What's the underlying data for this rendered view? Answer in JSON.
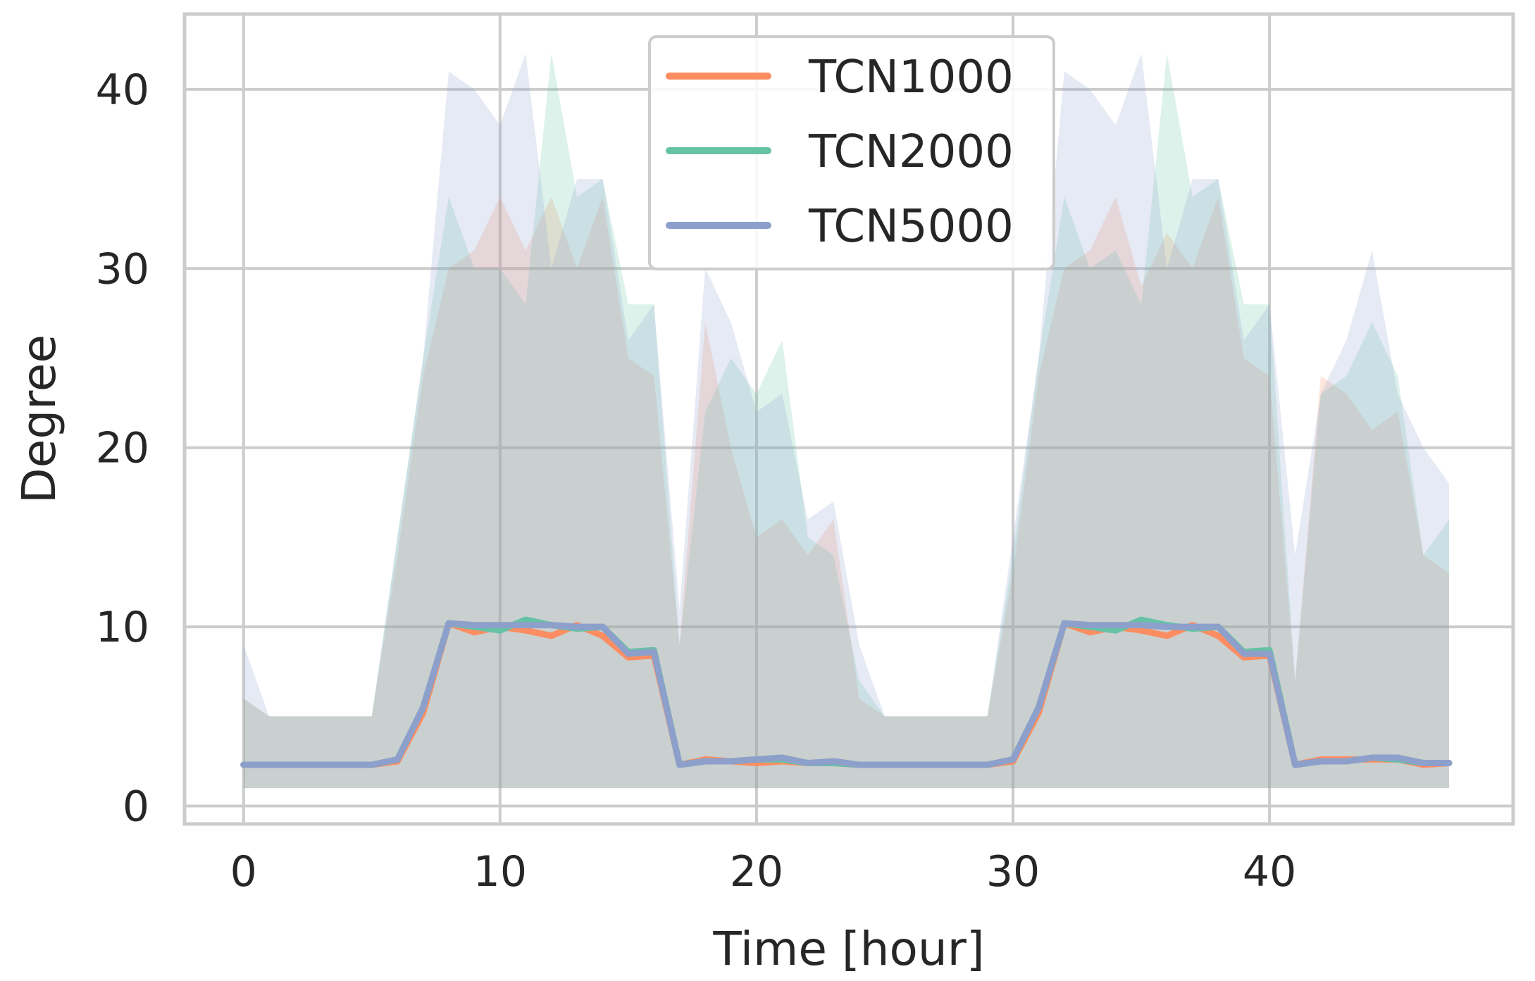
{
  "chart_data": {
    "type": "line",
    "xlabel": "Time [hour]",
    "ylabel": "Degree",
    "xlim": [
      -2.3,
      49.5
    ],
    "ylim": [
      -1.0,
      44.2
    ],
    "xticks": [
      0,
      10,
      20,
      30,
      40
    ],
    "yticks": [
      0,
      10,
      20,
      30,
      40
    ],
    "grid": true,
    "legend": "top-center",
    "x": [
      0,
      1,
      2,
      3,
      4,
      5,
      6,
      7,
      8,
      9,
      10,
      11,
      12,
      13,
      14,
      15,
      16,
      17,
      18,
      19,
      20,
      21,
      22,
      23,
      24,
      25,
      26,
      27,
      28,
      29,
      30,
      31,
      32,
      33,
      34,
      35,
      36,
      37,
      38,
      39,
      40,
      41,
      42,
      43,
      44,
      45,
      46,
      47
    ],
    "series": [
      {
        "name": "TCN1000",
        "color": "#fc8d62",
        "values": [
          2.3,
          2.3,
          2.3,
          2.3,
          2.3,
          2.3,
          2.5,
          5.2,
          10.2,
          9.7,
          10.0,
          9.8,
          9.5,
          10.1,
          9.5,
          8.3,
          8.4,
          2.3,
          2.6,
          2.5,
          2.4,
          2.5,
          2.4,
          2.4,
          2.3,
          2.3,
          2.3,
          2.3,
          2.3,
          2.3,
          2.5,
          5.2,
          10.2,
          9.7,
          10.0,
          9.8,
          9.5,
          10.1,
          9.5,
          8.3,
          8.4,
          2.3,
          2.6,
          2.6,
          2.6,
          2.6,
          2.3,
          2.4
        ],
        "upper": [
          6,
          5,
          5,
          5,
          5,
          5,
          14,
          24,
          30,
          31,
          34,
          31,
          34,
          30,
          34,
          25,
          24,
          9,
          27,
          20,
          15,
          16,
          14,
          16,
          6,
          5,
          5,
          5,
          5,
          5,
          13,
          24,
          30,
          31,
          34,
          29,
          32,
          30,
          34,
          25,
          24,
          7,
          24,
          23,
          21,
          22,
          14,
          13
        ],
        "lower": [
          1,
          1,
          1,
          1,
          1,
          1,
          1,
          1,
          1,
          1,
          1,
          1,
          1,
          1,
          1,
          1,
          1,
          1,
          1,
          1,
          1,
          1,
          1,
          1,
          1,
          1,
          1,
          1,
          1,
          1,
          1,
          1,
          1,
          1,
          1,
          1,
          1,
          1,
          1,
          1,
          1,
          1,
          1,
          1,
          1,
          1,
          1,
          1
        ]
      },
      {
        "name": "TCN2000",
        "color": "#66c2a5",
        "values": [
          2.3,
          2.3,
          2.3,
          2.3,
          2.3,
          2.3,
          2.6,
          5.5,
          10.2,
          10.0,
          9.8,
          10.4,
          10.1,
          9.9,
          10.0,
          8.6,
          8.7,
          2.3,
          2.5,
          2.5,
          2.6,
          2.6,
          2.4,
          2.4,
          2.3,
          2.3,
          2.3,
          2.3,
          2.3,
          2.3,
          2.6,
          5.5,
          10.2,
          10.0,
          9.8,
          10.4,
          10.1,
          9.9,
          10.0,
          8.6,
          8.7,
          2.3,
          2.5,
          2.5,
          2.7,
          2.6,
          2.4,
          2.4
        ],
        "upper": [
          6,
          5,
          5,
          5,
          5,
          5,
          15,
          25,
          34,
          30,
          30,
          28,
          42,
          34,
          35,
          28,
          28,
          9,
          22,
          25,
          23,
          26,
          15,
          14,
          7,
          5,
          5,
          5,
          5,
          5,
          14,
          25,
          34,
          30,
          31,
          28,
          42,
          34,
          35,
          28,
          28,
          7,
          23,
          24,
          27,
          24,
          14,
          16
        ],
        "lower": [
          1,
          1,
          1,
          1,
          1,
          1,
          1,
          1,
          1,
          1,
          1,
          1,
          1,
          1,
          1,
          1,
          1,
          1,
          1,
          1,
          1,
          1,
          1,
          1,
          1,
          1,
          1,
          1,
          1,
          1,
          1,
          1,
          1,
          1,
          1,
          1,
          1,
          1,
          1,
          1,
          1,
          1,
          1,
          1,
          1,
          1,
          1,
          1
        ]
      },
      {
        "name": "TCN5000",
        "color": "#8da0cb",
        "values": [
          2.3,
          2.3,
          2.3,
          2.3,
          2.3,
          2.3,
          2.6,
          5.5,
          10.2,
          10.1,
          10.1,
          10.1,
          10.1,
          10.0,
          10.0,
          8.5,
          8.6,
          2.3,
          2.5,
          2.5,
          2.6,
          2.7,
          2.4,
          2.5,
          2.3,
          2.3,
          2.3,
          2.3,
          2.3,
          2.3,
          2.6,
          5.5,
          10.2,
          10.1,
          10.1,
          10.1,
          10.0,
          10.0,
          10.0,
          8.5,
          8.5,
          2.3,
          2.5,
          2.5,
          2.7,
          2.7,
          2.4,
          2.4
        ],
        "upper": [
          9,
          5,
          5,
          5,
          5,
          5,
          15,
          25,
          41,
          40,
          38,
          42,
          30,
          35,
          35,
          26,
          28,
          11,
          30,
          27,
          22,
          23,
          16,
          17,
          9,
          5,
          5,
          5,
          5,
          5,
          15,
          25,
          41,
          40,
          38,
          42,
          30,
          35,
          35,
          26,
          28,
          14,
          23,
          26,
          31,
          23,
          20,
          18
        ],
        "lower": [
          1,
          1,
          1,
          1,
          1,
          1,
          1,
          1,
          1,
          1,
          1,
          1,
          1,
          1,
          1,
          1,
          1,
          1,
          1,
          1,
          1,
          1,
          1,
          1,
          1,
          1,
          1,
          1,
          1,
          1,
          1,
          1,
          1,
          1,
          1,
          1,
          1,
          1,
          1,
          1,
          1,
          1,
          1,
          1,
          1,
          1,
          1,
          1
        ]
      }
    ]
  }
}
